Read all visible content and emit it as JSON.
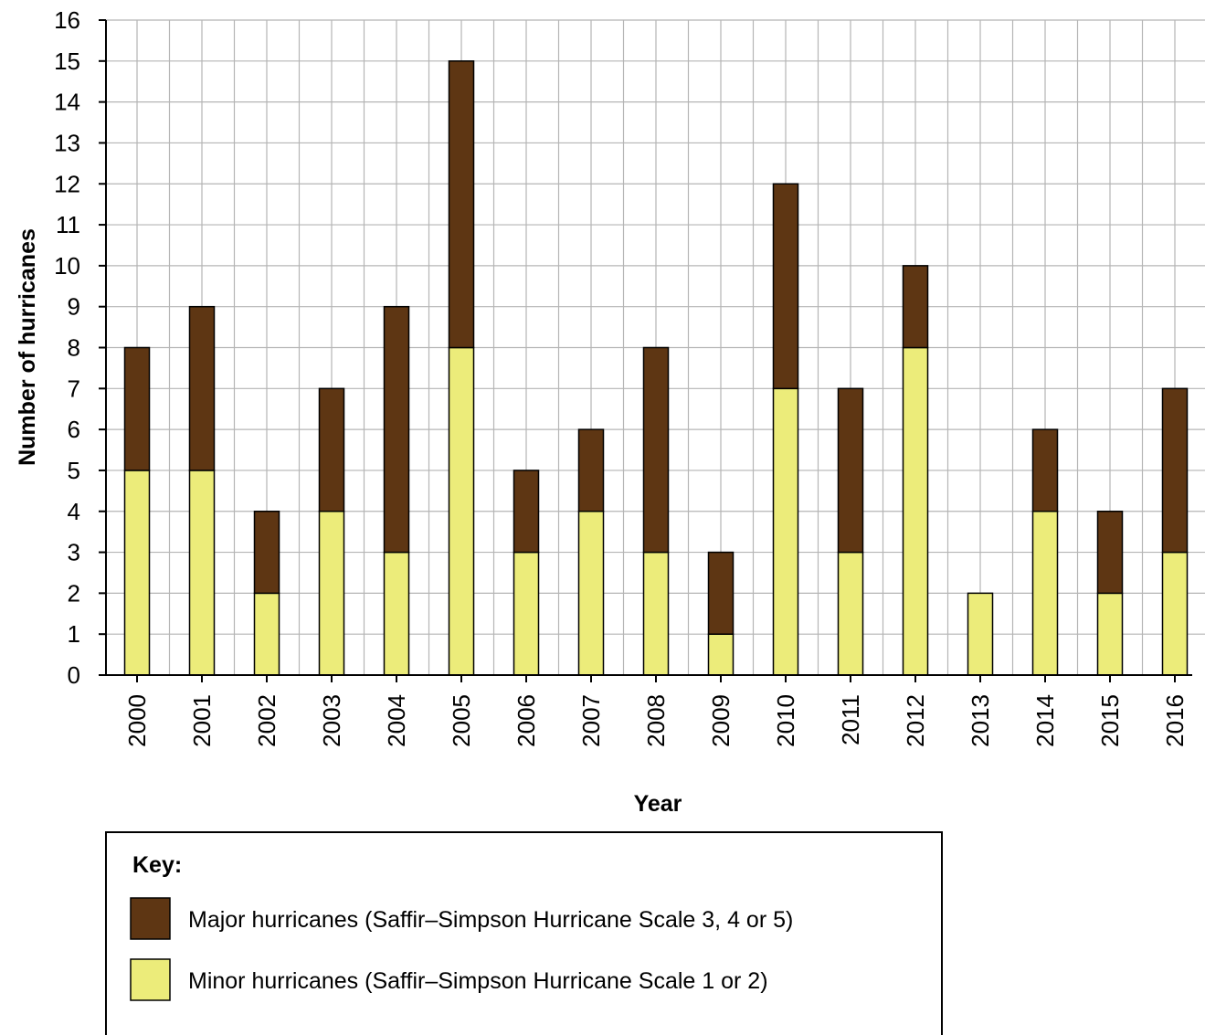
{
  "chart_data": {
    "type": "bar",
    "stacked": true,
    "categories": [
      "2000",
      "2001",
      "2002",
      "2003",
      "2004",
      "2005",
      "2006",
      "2007",
      "2008",
      "2009",
      "2010",
      "2011",
      "2012",
      "2013",
      "2014",
      "2015",
      "2016"
    ],
    "series": [
      {
        "name": "Minor hurricanes (Saffir–Simpson Hurricane Scale 1 or 2)",
        "color": "#ecec7a",
        "values": [
          5,
          5,
          2,
          4,
          3,
          8,
          3,
          4,
          3,
          1,
          7,
          3,
          8,
          2,
          4,
          2,
          3
        ]
      },
      {
        "name": "Major hurricanes (Saffir–Simpson Hurricane Scale 3, 4 or 5)",
        "color": "#5e3613",
        "values": [
          3,
          4,
          2,
          3,
          6,
          7,
          2,
          2,
          5,
          2,
          5,
          4,
          2,
          0,
          2,
          2,
          4
        ]
      }
    ],
    "xlabel": "Year",
    "ylabel": "Number of hurricanes",
    "ylim": [
      0,
      16
    ],
    "yticks": [
      "0",
      "1",
      "2",
      "3",
      "4",
      "5",
      "6",
      "7",
      "8",
      "9",
      "10",
      "11",
      "12",
      "13",
      "14",
      "15",
      "16"
    ],
    "grid": true,
    "legend": {
      "title": "Key:",
      "placement": "bottom"
    }
  },
  "colors": {
    "grid": "#b5b5b5",
    "bar_border": "#000000"
  }
}
